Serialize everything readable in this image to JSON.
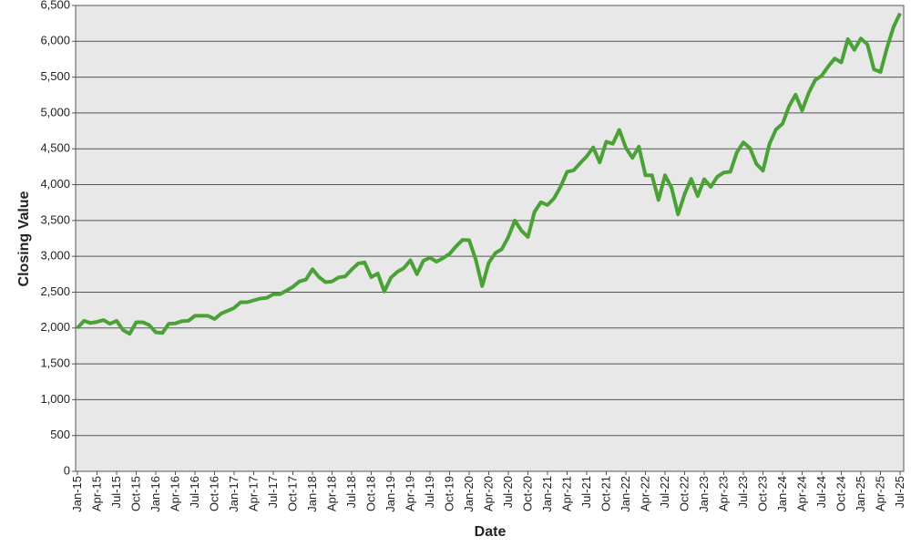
{
  "chart_data": {
    "type": "line",
    "x_label": "Date",
    "y_label": "Closing Value",
    "categories": [
      "Jan-15",
      null,
      null,
      "Apr-15",
      null,
      null,
      "Jul-15",
      null,
      null,
      "Oct-15",
      null,
      null,
      "Jan-16",
      null,
      null,
      "Apr-16",
      null,
      null,
      "Jul-16",
      null,
      null,
      "Oct-16",
      null,
      null,
      "Jan-17",
      null,
      null,
      "Apr-17",
      null,
      null,
      "Jul-17",
      null,
      null,
      "Oct-17",
      null,
      null,
      "Jan-18",
      null,
      null,
      "Apr-18",
      null,
      null,
      "Jul-18",
      null,
      null,
      "Oct-18",
      null,
      null,
      "Jan-19",
      null,
      null,
      "Apr-19",
      null,
      null,
      "Jul-19",
      null,
      null,
      "Oct-19",
      null,
      null,
      "Jan-20",
      null,
      null,
      "Apr-20",
      null,
      null,
      "Jul-20",
      null,
      null,
      "Oct-20",
      null,
      null,
      "Jan-21",
      null,
      null,
      "Apr-21",
      null,
      null,
      "Jul-21",
      null,
      null,
      "Oct-21",
      null,
      null,
      "Jan-22",
      null,
      null,
      "Apr-22",
      null,
      null,
      "Jul-22",
      null,
      null,
      "Oct-22",
      null,
      null,
      "Jan-23",
      null,
      null,
      "Apr-23",
      null,
      null,
      "Jul-23",
      null,
      null,
      "Oct-23",
      null,
      null,
      "Jan-24",
      null,
      null,
      "Apr-24",
      null,
      null,
      "Jul-24",
      null,
      null,
      "Oct-24",
      null,
      null,
      "Jan-25",
      null,
      null,
      "Apr-25",
      null,
      null,
      "Jul-25"
    ],
    "values": [
      2000,
      2100,
      2070,
      2085,
      2110,
      2060,
      2100,
      1970,
      1920,
      2080,
      2080,
      2040,
      1940,
      1930,
      2060,
      2065,
      2095,
      2100,
      2170,
      2170,
      2170,
      2125,
      2200,
      2240,
      2280,
      2360,
      2360,
      2385,
      2410,
      2420,
      2470,
      2470,
      2520,
      2575,
      2650,
      2675,
      2820,
      2710,
      2640,
      2650,
      2705,
      2720,
      2815,
      2900,
      2915,
      2710,
      2760,
      2510,
      2700,
      2785,
      2835,
      2945,
      2750,
      2940,
      2980,
      2925,
      2975,
      3035,
      3140,
      3230,
      3225,
      2955,
      2585,
      2910,
      3045,
      3100,
      3270,
      3500,
      3360,
      3270,
      3620,
      3755,
      3715,
      3810,
      3970,
      4180,
      4200,
      4300,
      4395,
      4520,
      4310,
      4600,
      4570,
      4765,
      4515,
      4375,
      4530,
      4130,
      4130,
      3785,
      4130,
      3955,
      3585,
      3870,
      4080,
      3840,
      4075,
      3970,
      4110,
      4170,
      4180,
      4450,
      4590,
      4510,
      4290,
      4195,
      4570,
      4770,
      4850,
      5095,
      5255,
      5035,
      5280,
      5460,
      5520,
      5650,
      5760,
      5705,
      6030,
      5880,
      6040,
      5955,
      5610,
      5570,
      5910,
      6200,
      6390
    ],
    "color": "#4aa236",
    "ylim": [
      0,
      6500
    ],
    "yticks": [
      0,
      500,
      {
        "value": 1000,
        "label": "1,000"
      },
      {
        "value": 1500,
        "label": "1,500"
      },
      {
        "value": 2000,
        "label": "2,000"
      },
      {
        "value": 2500,
        "label": "2,500"
      },
      {
        "value": 3000,
        "label": "3,000"
      },
      {
        "value": 3500,
        "label": "3,500"
      },
      {
        "value": 4000,
        "label": "4,000"
      },
      {
        "value": 4500,
        "label": "4,500"
      },
      {
        "value": 5000,
        "label": "5,000"
      },
      {
        "value": 5500,
        "label": "5,500"
      },
      {
        "value": 6000,
        "label": "6,000"
      },
      {
        "value": 6500,
        "label": "6,500"
      }
    ],
    "grid": true
  }
}
